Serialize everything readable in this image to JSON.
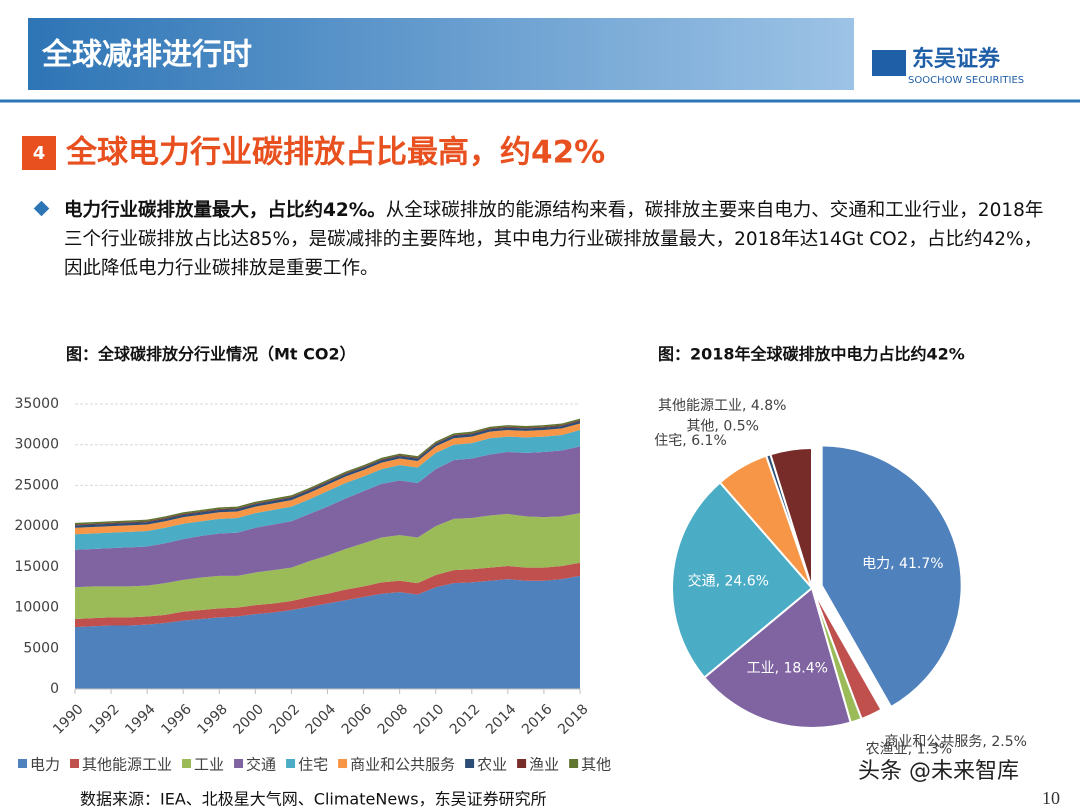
{
  "header": {
    "title": "全球减排进行时",
    "logo": "东吴证券",
    "logo_sub": "SOOCHOW SECURITIES"
  },
  "section": {
    "number": "4",
    "title": "全球电力行业碳排放占比最高，约42%"
  },
  "paragraph": {
    "lead": "电力行业碳排放量最大，占比约42%。",
    "text": "从全球碳排放的能源结构来看，碳排放主要来自电力、交通和工业行业，2018年三个行业碳排放占比达85%，是碳减排的主要阵地，其中电力行业碳排放量最大，2018年达14Gt CO2，占比约42%，因此降低电力行业碳排放是重要工作。"
  },
  "chart_data": [
    {
      "type": "stacked_area",
      "title": "图：全球碳排放分行业情况（Mt CO2）",
      "x": [
        1990,
        1991,
        1992,
        1993,
        1994,
        1995,
        1996,
        1997,
        1998,
        1999,
        2000,
        2001,
        2002,
        2003,
        2004,
        2005,
        2006,
        2007,
        2008,
        2009,
        2010,
        2011,
        2012,
        2013,
        2014,
        2015,
        2016,
        2017,
        2018
      ],
      "xlim": [
        1990,
        2018
      ],
      "xticks": [
        1990,
        1992,
        1994,
        1996,
        1998,
        2000,
        2002,
        2004,
        2006,
        2008,
        2010,
        2012,
        2014,
        2016,
        2018
      ],
      "ylim": [
        0,
        35000
      ],
      "yticks": [
        0,
        5000,
        10000,
        15000,
        20000,
        25000,
        30000,
        35000
      ],
      "grid": true,
      "legend": "bottom",
      "series": [
        {
          "name": "电力",
          "color": "#4f81bd",
          "values": [
            7600,
            7700,
            7800,
            7800,
            7900,
            8100,
            8400,
            8600,
            8800,
            8900,
            9200,
            9400,
            9700,
            10100,
            10500,
            10900,
            11300,
            11700,
            11900,
            11600,
            12500,
            13000,
            13100,
            13300,
            13500,
            13300,
            13300,
            13500,
            13900
          ]
        },
        {
          "name": "其他能源工业",
          "color": "#c0504d",
          "values": [
            1000,
            1000,
            1000,
            1000,
            1000,
            1000,
            1100,
            1100,
            1100,
            1100,
            1100,
            1100,
            1100,
            1200,
            1200,
            1300,
            1300,
            1400,
            1400,
            1400,
            1500,
            1600,
            1600,
            1600,
            1600,
            1600,
            1600,
            1600,
            1600
          ]
        },
        {
          "name": "工业",
          "color": "#9bbb59",
          "values": [
            3900,
            3900,
            3800,
            3800,
            3800,
            3900,
            3900,
            4000,
            4000,
            3900,
            4000,
            4100,
            4100,
            4400,
            4700,
            5000,
            5300,
            5500,
            5600,
            5600,
            6000,
            6300,
            6300,
            6400,
            6400,
            6300,
            6200,
            6100,
            6100
          ]
        },
        {
          "name": "交通",
          "color": "#8064a2",
          "values": [
            4600,
            4600,
            4700,
            4800,
            4800,
            4900,
            5000,
            5100,
            5200,
            5300,
            5500,
            5600,
            5700,
            5800,
            6000,
            6200,
            6400,
            6600,
            6700,
            6700,
            7000,
            7200,
            7300,
            7500,
            7600,
            7800,
            8000,
            8100,
            8200
          ]
        },
        {
          "name": "住宅",
          "color": "#4bacc6",
          "values": [
            1900,
            1900,
            1900,
            1900,
            1900,
            1900,
            1900,
            1800,
            1800,
            1800,
            1800,
            1800,
            1800,
            1800,
            1900,
            1900,
            1800,
            1800,
            1900,
            1900,
            2000,
            1900,
            1900,
            2000,
            1900,
            1900,
            1900,
            1900,
            2000
          ]
        },
        {
          "name": "商业和公共服务",
          "color": "#f79646",
          "values": [
            800,
            800,
            800,
            800,
            800,
            800,
            800,
            800,
            800,
            800,
            800,
            800,
            800,
            800,
            800,
            800,
            800,
            800,
            800,
            800,
            800,
            800,
            800,
            800,
            800,
            800,
            800,
            800,
            800
          ]
        },
        {
          "name": "农业",
          "color": "#2c4d75",
          "values": [
            300,
            300,
            300,
            300,
            300,
            300,
            300,
            300,
            300,
            300,
            300,
            300,
            300,
            300,
            300,
            300,
            300,
            300,
            300,
            300,
            300,
            300,
            300,
            300,
            300,
            300,
            300,
            300,
            300
          ]
        },
        {
          "name": "渔业",
          "color": "#772c2a",
          "values": [
            100,
            100,
            100,
            100,
            100,
            100,
            100,
            100,
            100,
            100,
            100,
            100,
            100,
            100,
            100,
            100,
            100,
            100,
            100,
            100,
            100,
            100,
            100,
            100,
            100,
            100,
            100,
            100,
            100
          ]
        },
        {
          "name": "其他",
          "color": "#5f7530",
          "values": [
            200,
            200,
            200,
            200,
            200,
            200,
            200,
            200,
            200,
            200,
            200,
            200,
            200,
            200,
            200,
            200,
            200,
            200,
            200,
            200,
            200,
            200,
            200,
            200,
            200,
            200,
            200,
            200,
            200
          ]
        }
      ]
    },
    {
      "type": "pie",
      "title": "图：2018年全球碳排放中电力占比约42%",
      "categories": [
        "电力",
        "商业和公共服务",
        "农渔业",
        "工业",
        "交通",
        "住宅",
        "其他",
        "其他能源工业"
      ],
      "values": [
        41.7,
        2.5,
        1.3,
        18.4,
        24.6,
        6.1,
        0.5,
        4.8
      ],
      "value_labels": [
        "电力, 41.7%",
        "商业和公共服务, 2.5%",
        "农渔业, 1.3%",
        "工业, 18.4%",
        "交通, 24.6%",
        "住宅, 6.1%",
        "其他, 0.5%",
        "其他能源工业, 4.8%"
      ],
      "colors": [
        "#4f81bd",
        "#c0504d",
        "#9bbb59",
        "#8064a2",
        "#4bacc6",
        "#f79646",
        "#2c4d75",
        "#772c2a"
      ],
      "exploded": "电力"
    }
  ],
  "footer": {
    "source": "数据来源：IEA、北极星大气网、ClimateNews，东吴证券研究所",
    "page": "10",
    "watermark": "头条 @未来智库"
  }
}
